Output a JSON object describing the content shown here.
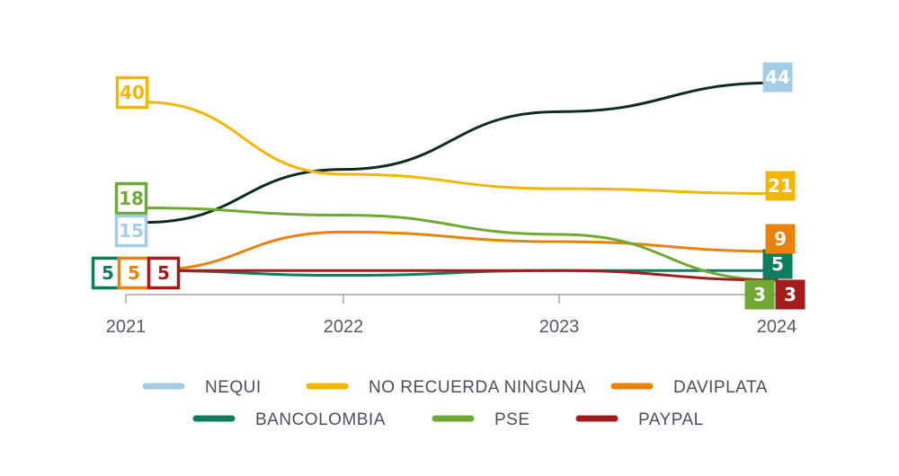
{
  "chart_data": {
    "type": "line",
    "title": "",
    "xlabel": "",
    "ylabel": "",
    "x": [
      "2021",
      "2022",
      "2023",
      "2024"
    ],
    "series": [
      {
        "name": "NEQUI",
        "color": "#0d2b26",
        "legend_color": "#a3cce6",
        "box_color": "#a3cce6",
        "values": [
          15,
          26,
          38,
          44
        ],
        "labels": [
          "15",
          "",
          "",
          "44"
        ],
        "label_style": [
          "outline",
          "",
          "",
          "filled"
        ]
      },
      {
        "name": "NO RECUERDA NINGUNA",
        "color": "#f2b705",
        "legend_color": "#f2b705",
        "box_color": "#f2b705",
        "values": [
          40,
          25,
          22,
          21
        ],
        "labels": [
          "40",
          "",
          "",
          "21"
        ],
        "label_style": [
          "outline",
          "",
          "",
          "filled"
        ]
      },
      {
        "name": "DAVIPLATA",
        "color": "#e8820c",
        "legend_color": "#e8820c",
        "box_color": "#e8820c",
        "values": [
          5,
          13,
          11,
          9
        ],
        "labels": [
          "5",
          "",
          "",
          "9"
        ],
        "label_style": [
          "outline",
          "",
          "",
          "filled"
        ]
      },
      {
        "name": "BANCOLOMBIA",
        "color": "#0f7b5f",
        "legend_color": "#0f7b5f",
        "box_color": "#0f7b5f",
        "values": [
          5,
          4,
          5,
          5
        ],
        "labels": [
          "5",
          "",
          "",
          "5"
        ],
        "label_style": [
          "outline",
          "",
          "",
          "filled"
        ]
      },
      {
        "name": "PSE",
        "color": "#6fa832",
        "legend_color": "#6fa832",
        "box_color": "#6fa832",
        "values": [
          18,
          16.5,
          12.5,
          3
        ],
        "labels": [
          "18",
          "",
          "",
          "3"
        ],
        "label_style": [
          "outline",
          "",
          "",
          "filled"
        ]
      },
      {
        "name": "PAYPAL",
        "color": "#a31c1c",
        "legend_color": "#a31c1c",
        "box_color": "#a31c1c",
        "values": [
          5,
          5,
          5,
          3
        ],
        "labels": [
          "5",
          "",
          "",
          "3"
        ],
        "label_style": [
          "outline",
          "",
          "",
          "filled"
        ]
      }
    ],
    "ylim": [
      0,
      50
    ],
    "grid": false,
    "legend_position": "bottom"
  }
}
